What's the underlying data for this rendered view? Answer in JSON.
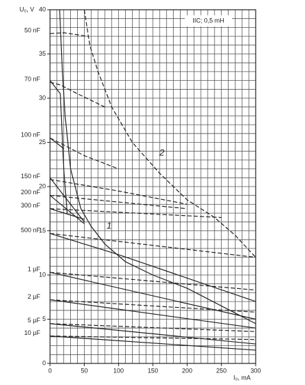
{
  "chart_data": {
    "type": "line",
    "y_label": "U₀, V",
    "x_label": "I₀, mA",
    "annotations": [
      "IIC; 0,5 mH",
      "1",
      "2"
    ],
    "xlim": [
      0,
      300
    ],
    "ylim": [
      0,
      40
    ],
    "xticks": [
      0,
      50,
      100,
      150,
      200,
      250,
      300
    ],
    "yticks": [
      0,
      5,
      10,
      15,
      20,
      25,
      30,
      35,
      40
    ],
    "x_minor_ticks": [
      0,
      10,
      20,
      30,
      40,
      50,
      60,
      70,
      80,
      90,
      100,
      110,
      120,
      130,
      140,
      150,
      160,
      170,
      180,
      190,
      200,
      210,
      220,
      230,
      240,
      250,
      260,
      270,
      280,
      290,
      300
    ],
    "y_minor_ticks": [
      0,
      1,
      2,
      3,
      4,
      5,
      6,
      7,
      8,
      9,
      10,
      11,
      12,
      13,
      14,
      15,
      16,
      17,
      18,
      19,
      20,
      21,
      22,
      23,
      24,
      25,
      26,
      27,
      28,
      29,
      30,
      31,
      32,
      33,
      34,
      35,
      36,
      37,
      38,
      39,
      40
    ],
    "grid": true,
    "color": "#222222",
    "series": [
      {
        "x": [
          14,
          18,
          22,
          30,
          45,
          60,
          80,
          110,
          150,
          200,
          250,
          300
        ],
        "values": [
          40,
          33,
          28,
          22,
          17.5,
          15.5,
          13.5,
          11.5,
          10,
          8.5,
          6.5,
          4.5
        ],
        "dashed": false
      },
      {
        "x": [
          50,
          58,
          70,
          90,
          120,
          160,
          200,
          240,
          270,
          300
        ],
        "values": [
          40,
          36,
          33,
          29,
          25,
          21.5,
          18.5,
          16.5,
          14.5,
          12
        ],
        "dashed": true
      },
      {
        "name": "50 nF",
        "x": [
          0,
          20,
          55
        ],
        "values": [
          37.3,
          37.4,
          37
        ],
        "dashed": true
      },
      {
        "name": "70 nF",
        "x": [
          0,
          15,
          40,
          80
        ],
        "values": [
          31.8,
          31.5,
          30.5,
          29
        ],
        "dashed": true
      },
      {
        "x": [
          0,
          15,
          20,
          25
        ],
        "values": [
          32,
          30.5,
          22,
          17
        ],
        "dashed": false
      },
      {
        "name": "100 nF",
        "x": [
          0,
          50,
          100
        ],
        "values": [
          25.5,
          23.5,
          22
        ],
        "dashed": true
      },
      {
        "x": [
          0,
          20
        ],
        "values": [
          25.5,
          24.3
        ],
        "dashed": false
      },
      {
        "name": "150 nF",
        "x": [
          0,
          100,
          200
        ],
        "values": [
          20.8,
          19.5,
          18
        ],
        "dashed": true
      },
      {
        "x": [
          0,
          50
        ],
        "values": [
          21,
          16
        ],
        "dashed": false
      },
      {
        "name": "200 nF",
        "x": [
          0,
          200
        ],
        "values": [
          19,
          17.5
        ],
        "dashed": true
      },
      {
        "x": [
          0,
          50
        ],
        "values": [
          19,
          15.8
        ],
        "dashed": false
      },
      {
        "name": "300 nF",
        "x": [
          0,
          250
        ],
        "values": [
          17.5,
          16.5
        ],
        "dashed": true
      },
      {
        "x": [
          0,
          50
        ],
        "values": [
          17.5,
          16.3
        ],
        "dashed": false
      },
      {
        "name": "500 nF",
        "x": [
          0,
          300
        ],
        "values": [
          14.7,
          12
        ],
        "dashed": true
      },
      {
        "x": [
          0,
          100,
          300
        ],
        "values": [
          14.7,
          12.3,
          7
        ],
        "dashed": false
      },
      {
        "name": "1 µF",
        "x": [
          0,
          300
        ],
        "values": [
          10.3,
          8.3
        ],
        "dashed": true
      },
      {
        "x": [
          0,
          300
        ],
        "values": [
          10.3,
          5
        ],
        "dashed": false
      },
      {
        "name": "2 µF",
        "x": [
          0,
          300
        ],
        "values": [
          7.2,
          5.8
        ],
        "dashed": true
      },
      {
        "x": [
          0,
          300
        ],
        "values": [
          7.2,
          4
        ],
        "dashed": false
      },
      {
        "name": "5 µF",
        "x": [
          0,
          300
        ],
        "values": [
          4.5,
          3.6
        ],
        "dashed": true
      },
      {
        "x": [
          0,
          300
        ],
        "values": [
          4.5,
          2.2
        ],
        "dashed": false
      },
      {
        "name": "10 µF",
        "x": [
          0,
          300
        ],
        "values": [
          3.1,
          2.7
        ],
        "dashed": true
      },
      {
        "x": [
          0,
          300
        ],
        "values": [
          3.1,
          1.5
        ],
        "dashed": false
      }
    ]
  }
}
